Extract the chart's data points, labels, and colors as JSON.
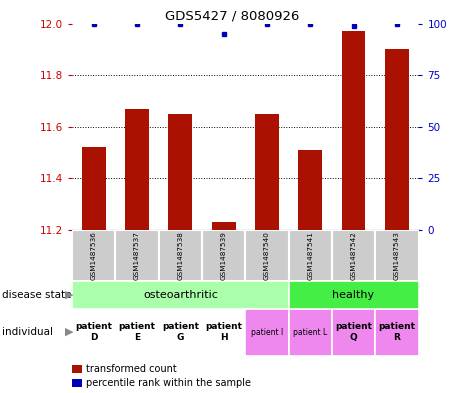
{
  "title": "GDS5427 / 8080926",
  "samples": [
    "GSM1487536",
    "GSM1487537",
    "GSM1487538",
    "GSM1487539",
    "GSM1487540",
    "GSM1487541",
    "GSM1487542",
    "GSM1487543"
  ],
  "red_values": [
    11.52,
    11.67,
    11.65,
    11.23,
    11.65,
    11.51,
    11.97,
    11.9
  ],
  "blue_values": [
    100,
    100,
    100,
    95,
    100,
    100,
    99,
    100
  ],
  "ylim": [
    11.2,
    12.0
  ],
  "y2lim": [
    0,
    100
  ],
  "yticks": [
    11.2,
    11.4,
    11.6,
    11.8,
    12.0
  ],
  "y2ticks": [
    0,
    25,
    50,
    75,
    100
  ],
  "disease_state_oa_color": "#AAFFAA",
  "disease_state_h_color": "#44EE44",
  "individual_white_color": "#FFFFFF",
  "individual_pink_color": "#EE88EE",
  "bar_color": "#AA1100",
  "dot_color": "#0000BB",
  "left_label_color": "#CC0000",
  "right_label_color": "#0000CC",
  "sample_box_color": "#CCCCCC",
  "legend_red": "transformed count",
  "legend_blue": "percentile rank within the sample",
  "ind_labels": [
    "patient\nD",
    "patient\nE",
    "patient\nG",
    "patient\nH",
    "patient I",
    "patient L",
    "patient\nQ",
    "patient\nR"
  ],
  "ind_bold": [
    true,
    true,
    true,
    true,
    false,
    false,
    true,
    true
  ]
}
